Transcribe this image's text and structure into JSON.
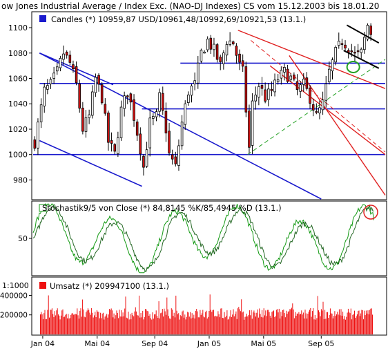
{
  "title": "ow Jones Industrial Average / Index Exc. (NAO-DJ Indexes) CS vom 15.12.2003 bis 18.01.20",
  "colors": {
    "background": "#ffffff",
    "price_panel_bg": "#ffffff",
    "candle_up": "#ffffff",
    "candle_down": "#d01010",
    "channel_blue": "#1a1acd",
    "channel_red": "#e02020",
    "channel_black": "#000000",
    "support_green": "#22a022",
    "stoch_k": "#119911",
    "stoch_d": "#226622",
    "volume": "#ee1111",
    "annotation_circle": "#e02020"
  },
  "legends": {
    "price": "Candles (*) 10959,87 USD/10961,48/10992,69/10921,53 (13.1.)",
    "stoch": "Stochastik9/5 von Close (*) 84,8145 %K/85,4945 %D (13.1.)",
    "volume": "Umsatz (*) 209947100 (13.1.)",
    "volume_scale": "1:1000"
  },
  "chart_data": [
    {
      "type": "candlestick",
      "panel": "price",
      "y_ticks": [
        "1100",
        "1080",
        "1060",
        "1040",
        "1020",
        "1000",
        "980"
      ],
      "ylim": [
        965,
        1112
      ],
      "x_ticks": [
        "Jan 04",
        "Mai 04",
        "Sep 04",
        "Jan 05",
        "Mai 05",
        "Sep 05"
      ],
      "x_tick_weeks": [
        3,
        20,
        38,
        55,
        72,
        90
      ],
      "weeks": 110,
      "close_path": [
        [
          0,
          1010
        ],
        [
          3,
          1050
        ],
        [
          5,
          1055
        ],
        [
          7,
          1065
        ],
        [
          9,
          1080
        ],
        [
          11,
          1072
        ],
        [
          13,
          1055
        ],
        [
          15,
          1020
        ],
        [
          17,
          1030
        ],
        [
          19,
          1060
        ],
        [
          21,
          1045
        ],
        [
          23,
          1010
        ],
        [
          25,
          1000
        ],
        [
          27,
          1035
        ],
        [
          29,
          1050
        ],
        [
          31,
          1030
        ],
        [
          33,
          1005
        ],
        [
          34,
          990
        ],
        [
          36,
          1025
        ],
        [
          38,
          1030
        ],
        [
          39,
          1045
        ],
        [
          41,
          1020
        ],
        [
          42,
          1000
        ],
        [
          44,
          990
        ],
        [
          46,
          1025
        ],
        [
          48,
          1050
        ],
        [
          50,
          1055
        ],
        [
          52,
          1080
        ],
        [
          54,
          1090
        ],
        [
          56,
          1082
        ],
        [
          58,
          1070
        ],
        [
          60,
          1090
        ],
        [
          62,
          1088
        ],
        [
          64,
          1070
        ],
        [
          65,
          1065
        ],
        [
          67,
          1005
        ],
        [
          68,
          1040
        ],
        [
          70,
          1055
        ],
        [
          72,
          1045
        ],
        [
          74,
          1050
        ],
        [
          76,
          1060
        ],
        [
          78,
          1065
        ],
        [
          80,
          1060
        ],
        [
          82,
          1050
        ],
        [
          84,
          1055
        ],
        [
          86,
          1045
        ],
        [
          88,
          1030
        ],
        [
          90,
          1040
        ],
        [
          92,
          1065
        ],
        [
          94,
          1080
        ],
        [
          96,
          1090
        ],
        [
          98,
          1085
        ],
        [
          100,
          1078
        ],
        [
          102,
          1080
        ],
        [
          104,
          1102
        ],
        [
          105,
          1096
        ]
      ]
    },
    {
      "type": "line",
      "panel": "stochastic",
      "y_ticks": [
        "50"
      ],
      "ylim": [
        0,
        100
      ],
      "series": [
        {
          "name": "%K",
          "last": 84.8145
        },
        {
          "name": "%D",
          "last": 85.4945
        }
      ]
    },
    {
      "type": "bar",
      "panel": "volume",
      "y_ticks": [
        "400000",
        "200000"
      ],
      "ylim": [
        0,
        580000
      ],
      "last": 209947100
    }
  ],
  "annotations": {
    "blue_horizontal_levels": [
      1000,
      1036,
      1056,
      1072
    ],
    "blue_channel_upper": [
      [
        2,
        1080
      ],
      [
        25,
        1055
      ]
    ],
    "blue_channel_lower": [
      [
        2,
        1011
      ],
      [
        34,
        975
      ]
    ],
    "blue_channel_long": [
      [
        2,
        1080
      ],
      [
        90,
        965
      ]
    ],
    "red_channel_upper": [
      [
        64,
        1098
      ],
      [
        110,
        1052
      ]
    ],
    "red_channel_mid": [
      [
        74,
        1070
      ],
      [
        110,
        1000
      ]
    ],
    "red_channel_lower": [
      [
        80,
        1078
      ],
      [
        110,
        968
      ]
    ],
    "red_long_top": [
      [
        68,
        1090
      ],
      [
        110,
        1002
      ]
    ],
    "green_support": [
      [
        67,
        1000
      ],
      [
        110,
        1075
      ]
    ],
    "black_wedge_top": [
      [
        98,
        1102
      ],
      [
        108,
        1088
      ]
    ],
    "black_wedge_bottom": [
      [
        97,
        1082
      ],
      [
        108,
        1068
      ]
    ]
  }
}
